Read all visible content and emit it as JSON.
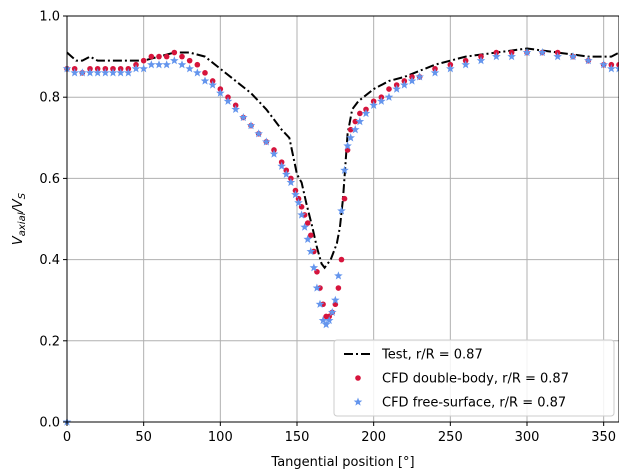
{
  "chart_data": {
    "type": "line",
    "xlabel": "Tangential position [°]",
    "ylabel_parts": {
      "v": "V",
      "sub1": "axial",
      "slash": "/V",
      "sub2": "S"
    },
    "xlim": [
      0,
      360
    ],
    "ylim": [
      0.0,
      1.0
    ],
    "xticks": [
      0,
      50,
      100,
      150,
      200,
      250,
      300,
      350
    ],
    "yticks": [
      0.0,
      0.2,
      0.4,
      0.6,
      0.8,
      1.0
    ],
    "ytick_labels": [
      "0.0",
      "0.2",
      "0.4",
      "0.6",
      "0.8",
      "1.0"
    ],
    "grid": true,
    "legend_position": "bottom-right",
    "series": [
      {
        "name": "Test, r/R = 0.87",
        "style": "dash-dot",
        "color": "#000000",
        "x": [
          0,
          3,
          6,
          10,
          15,
          20,
          30,
          40,
          50,
          60,
          70,
          80,
          90,
          100,
          110,
          120,
          130,
          140,
          145,
          150,
          153,
          156,
          160,
          163,
          166,
          168,
          170,
          172,
          174,
          176,
          178,
          180,
          183,
          186,
          190,
          200,
          210,
          220,
          240,
          260,
          280,
          300,
          320,
          340,
          350,
          355,
          360
        ],
        "y": [
          0.91,
          0.9,
          0.89,
          0.89,
          0.9,
          0.89,
          0.89,
          0.89,
          0.89,
          0.9,
          0.91,
          0.91,
          0.9,
          0.87,
          0.84,
          0.81,
          0.77,
          0.72,
          0.7,
          0.61,
          0.59,
          0.54,
          0.48,
          0.43,
          0.39,
          0.38,
          0.39,
          0.4,
          0.42,
          0.44,
          0.48,
          0.55,
          0.71,
          0.77,
          0.79,
          0.82,
          0.84,
          0.85,
          0.88,
          0.9,
          0.91,
          0.92,
          0.91,
          0.9,
          0.9,
          0.9,
          0.91
        ]
      },
      {
        "name": "CFD double-body, r/R = 0.87",
        "style": "dot",
        "color": "#d6143c",
        "x": [
          0,
          5,
          10,
          15,
          20,
          25,
          30,
          35,
          40,
          45,
          50,
          55,
          60,
          65,
          70,
          75,
          80,
          85,
          90,
          95,
          100,
          105,
          110,
          115,
          120,
          125,
          130,
          135,
          140,
          143,
          146,
          149,
          151,
          153,
          155,
          157,
          159,
          161,
          163,
          165,
          167,
          169,
          171,
          173,
          175,
          177,
          179,
          181,
          183,
          185,
          188,
          191,
          195,
          200,
          205,
          210,
          215,
          220,
          225,
          230,
          240,
          250,
          260,
          270,
          280,
          290,
          300,
          310,
          320,
          330,
          340,
          350,
          355,
          360
        ],
        "y": [
          0.87,
          0.87,
          0.86,
          0.87,
          0.87,
          0.87,
          0.87,
          0.87,
          0.87,
          0.88,
          0.89,
          0.9,
          0.9,
          0.9,
          0.91,
          0.9,
          0.89,
          0.88,
          0.86,
          0.84,
          0.82,
          0.8,
          0.78,
          0.75,
          0.73,
          0.71,
          0.69,
          0.67,
          0.64,
          0.62,
          0.6,
          0.57,
          0.55,
          0.53,
          0.51,
          0.49,
          0.46,
          0.42,
          0.37,
          0.33,
          0.29,
          0.26,
          0.26,
          0.27,
          0.29,
          0.33,
          0.4,
          0.55,
          0.67,
          0.72,
          0.74,
          0.76,
          0.77,
          0.79,
          0.8,
          0.82,
          0.83,
          0.84,
          0.85,
          0.85,
          0.87,
          0.88,
          0.89,
          0.9,
          0.91,
          0.91,
          0.91,
          0.91,
          0.91,
          0.9,
          0.89,
          0.88,
          0.88,
          0.88
        ]
      },
      {
        "name": "CFD free-surface, r/R = 0.87",
        "style": "star",
        "color": "#6495ed",
        "x": [
          0,
          5,
          10,
          15,
          20,
          25,
          30,
          35,
          40,
          45,
          50,
          55,
          60,
          65,
          70,
          75,
          80,
          85,
          90,
          95,
          100,
          105,
          110,
          115,
          120,
          125,
          130,
          135,
          140,
          143,
          146,
          149,
          151,
          153,
          155,
          157,
          159,
          161,
          163,
          165,
          167,
          169,
          171,
          173,
          175,
          177,
          179,
          181,
          183,
          185,
          188,
          191,
          195,
          200,
          205,
          210,
          215,
          220,
          225,
          230,
          240,
          250,
          260,
          270,
          280,
          290,
          300,
          310,
          320,
          330,
          340,
          350,
          355,
          360,
          0
        ],
        "y": [
          0.87,
          0.86,
          0.86,
          0.86,
          0.86,
          0.86,
          0.86,
          0.86,
          0.86,
          0.87,
          0.87,
          0.88,
          0.88,
          0.88,
          0.89,
          0.88,
          0.87,
          0.86,
          0.84,
          0.83,
          0.81,
          0.79,
          0.77,
          0.75,
          0.73,
          0.71,
          0.69,
          0.66,
          0.63,
          0.61,
          0.59,
          0.56,
          0.54,
          0.51,
          0.48,
          0.45,
          0.42,
          0.38,
          0.33,
          0.29,
          0.25,
          0.24,
          0.25,
          0.27,
          0.3,
          0.36,
          0.52,
          0.62,
          0.68,
          0.7,
          0.72,
          0.74,
          0.76,
          0.78,
          0.79,
          0.8,
          0.82,
          0.83,
          0.84,
          0.85,
          0.86,
          0.87,
          0.88,
          0.89,
          0.9,
          0.9,
          0.91,
          0.91,
          0.9,
          0.9,
          0.89,
          0.88,
          0.87,
          0.87,
          0.0
        ]
      }
    ]
  }
}
